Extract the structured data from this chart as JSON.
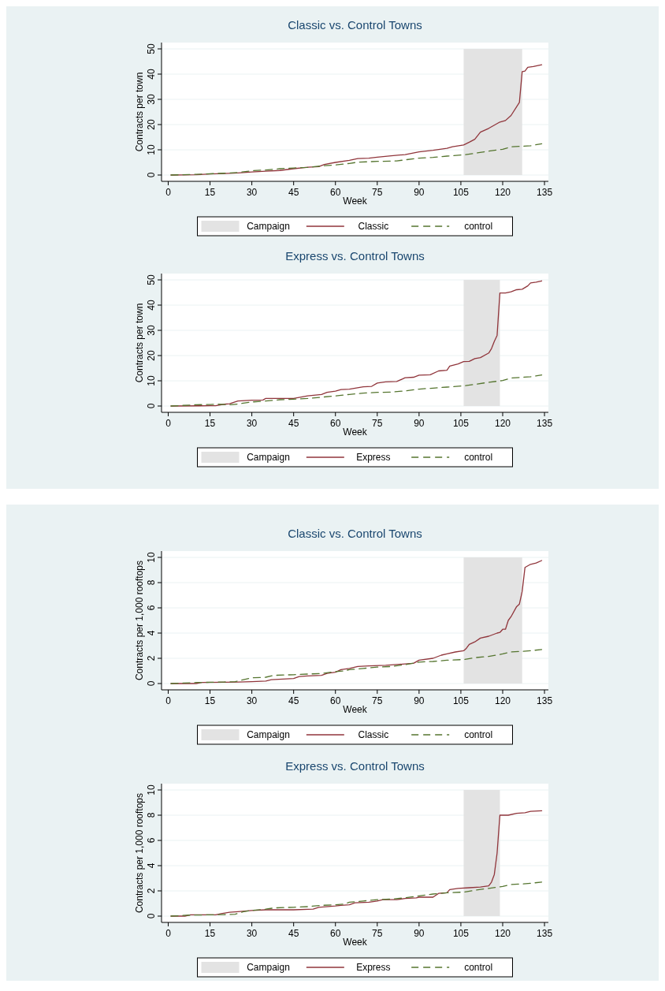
{
  "chart_data": [
    {
      "type": "line",
      "title": "Classic vs. Control Towns",
      "xlabel": "Week",
      "ylabel": "Contracts per town",
      "xlim": [
        -2.4,
        136.4
      ],
      "xticks": [
        0,
        15,
        30,
        45,
        60,
        75,
        90,
        105,
        120,
        135
      ],
      "ylim": [
        -2.5,
        52.5
      ],
      "yticks": [
        0,
        10,
        20,
        30,
        40,
        50
      ],
      "grid": "y",
      "legend": "bottom",
      "bands": [
        {
          "axis": "x",
          "from": 106,
          "to": 127,
          "label": "Campaign",
          "color": "#e3e3e3"
        }
      ],
      "series": [
        {
          "name": "Classic",
          "color": "#90353b",
          "line_style": "solid",
          "x": [
            1,
            10,
            15,
            20,
            25,
            30,
            35,
            40,
            45,
            50,
            54,
            56,
            60,
            65,
            68,
            72,
            75,
            80,
            85,
            90,
            95,
            100,
            102,
            106,
            108,
            110,
            112,
            115,
            119,
            121,
            123,
            126,
            127,
            128,
            129,
            131,
            134
          ],
          "values": [
            0,
            0.1,
            0.4,
            0.6,
            0.8,
            1.2,
            1.5,
            1.8,
            2.5,
            3.1,
            3.3,
            4.2,
            5,
            5.8,
            6.5,
            6.7,
            7.1,
            7.6,
            8.1,
            9.2,
            9.8,
            10.6,
            11.2,
            11.9,
            13,
            14.2,
            17,
            18.5,
            21,
            21.6,
            23.6,
            28.8,
            41,
            41.2,
            42.7,
            43,
            43.7
          ]
        },
        {
          "name": "control",
          "color": "#55752f",
          "line_style": "dashed",
          "x": [
            1,
            10,
            20,
            25,
            30,
            35,
            40,
            45,
            50,
            55,
            60,
            65,
            68,
            75,
            82,
            90,
            95,
            100,
            106,
            110,
            115,
            120,
            123,
            127,
            130,
            134
          ],
          "values": [
            0,
            0.3,
            0.7,
            1,
            1.7,
            2,
            2.5,
            2.8,
            3,
            3.6,
            4,
            4.6,
            5.1,
            5.4,
            5.6,
            6.7,
            7,
            7.5,
            8,
            8.6,
            9.5,
            10.2,
            11.2,
            11.4,
            11.6,
            12.4
          ]
        }
      ]
    },
    {
      "type": "line",
      "title": "Express vs. Control Towns",
      "xlabel": "Week",
      "ylabel": "Contracts per town",
      "xlim": [
        -2.4,
        136.4
      ],
      "xticks": [
        0,
        15,
        30,
        45,
        60,
        75,
        90,
        105,
        120,
        135
      ],
      "ylim": [
        -2.5,
        52.5
      ],
      "yticks": [
        0,
        10,
        20,
        30,
        40,
        50
      ],
      "grid": "y",
      "legend": "bottom",
      "bands": [
        {
          "axis": "x",
          "from": 106,
          "to": 119,
          "label": "Campaign",
          "color": "#e3e3e3"
        }
      ],
      "series": [
        {
          "name": "Express",
          "color": "#90353b",
          "line_style": "solid",
          "x": [
            1,
            15,
            17,
            20,
            22,
            25,
            30,
            34,
            35,
            45,
            50,
            55,
            57,
            60,
            62,
            65,
            70,
            73,
            75,
            78,
            82,
            85,
            88,
            90,
            94,
            97,
            100,
            101,
            104,
            106,
            108,
            110,
            112,
            115,
            116,
            117,
            118,
            119,
            121,
            123,
            125,
            127,
            129,
            130,
            132,
            134
          ],
          "values": [
            0,
            0.1,
            0.1,
            0.7,
            0.9,
            2,
            2.3,
            2.4,
            3,
            3,
            4,
            4.6,
            5.4,
            5.9,
            6.5,
            6.7,
            7.6,
            7.8,
            9.1,
            9.6,
            9.7,
            11.2,
            11.4,
            12.2,
            12.4,
            13.9,
            14.2,
            15.8,
            16.7,
            17.6,
            17.7,
            18.8,
            19.2,
            21,
            22.8,
            25.6,
            28,
            44.8,
            44.8,
            45.3,
            46.1,
            46.3,
            47.6,
            48.8,
            49.1,
            49.6
          ]
        },
        {
          "name": "control",
          "color": "#55752f",
          "line_style": "dashed",
          "x": [
            1,
            10,
            15,
            18,
            22,
            25,
            30,
            35,
            40,
            45,
            50,
            55,
            60,
            65,
            70,
            75,
            80,
            85,
            90,
            95,
            100,
            106,
            110,
            115,
            120,
            123,
            127,
            130,
            134
          ],
          "values": [
            0,
            0.5,
            0.6,
            0.7,
            0.5,
            0.8,
            1.6,
            2,
            2.5,
            2.7,
            3,
            3.5,
            4,
            4.6,
            5.1,
            5.4,
            5.5,
            6,
            6.7,
            7.1,
            7.5,
            8,
            8.6,
            9.4,
            10.1,
            11.1,
            11.4,
            11.6,
            12.3
          ]
        }
      ]
    },
    {
      "type": "line",
      "title": "Classic vs. Control Towns",
      "xlabel": "Week",
      "ylabel": "Contracts per 1,000 rooftops",
      "xlim": [
        -2.4,
        136.4
      ],
      "xticks": [
        0,
        15,
        30,
        45,
        60,
        75,
        90,
        105,
        120,
        135
      ],
      "ylim": [
        -0.5,
        10.5
      ],
      "yticks": [
        0,
        2,
        4,
        6,
        8,
        10
      ],
      "grid": "y",
      "legend": "bottom",
      "bands": [
        {
          "axis": "x",
          "from": 106,
          "to": 127,
          "label": "Campaign",
          "color": "#e3e3e3"
        }
      ],
      "series": [
        {
          "name": "Classic",
          "color": "#90353b",
          "line_style": "solid",
          "x": [
            1,
            10,
            12,
            20,
            25,
            30,
            35,
            37,
            45,
            47,
            50,
            55,
            57,
            60,
            62,
            65,
            68,
            72,
            78,
            85,
            88,
            90,
            95,
            98,
            100,
            103,
            106,
            107,
            108,
            110,
            112,
            115,
            118,
            119,
            120,
            121,
            122,
            123,
            125,
            126,
            127,
            128,
            130,
            132,
            134
          ],
          "values": [
            0,
            0,
            0.08,
            0.1,
            0.12,
            0.15,
            0.2,
            0.3,
            0.4,
            0.55,
            0.6,
            0.65,
            0.8,
            0.9,
            1.1,
            1.2,
            1.35,
            1.4,
            1.45,
            1.55,
            1.6,
            1.85,
            2,
            2.25,
            2.35,
            2.5,
            2.6,
            2.8,
            3.1,
            3.3,
            3.6,
            3.75,
            4,
            4.05,
            4.3,
            4.3,
            5,
            5.3,
            6.1,
            6.3,
            7.3,
            9.2,
            9.45,
            9.55,
            9.75
          ]
        },
        {
          "name": "control",
          "color": "#55752f",
          "line_style": "dashed",
          "x": [
            1,
            10,
            15,
            20,
            24,
            27,
            30,
            35,
            38,
            45,
            50,
            55,
            60,
            63,
            65,
            70,
            75,
            80,
            85,
            90,
            95,
            100,
            106,
            110,
            115,
            120,
            123,
            127,
            130,
            134
          ],
          "values": [
            0,
            0.08,
            0.1,
            0.12,
            0.15,
            0.3,
            0.45,
            0.5,
            0.65,
            0.7,
            0.75,
            0.8,
            0.95,
            1,
            1.1,
            1.2,
            1.3,
            1.35,
            1.5,
            1.7,
            1.75,
            1.85,
            1.9,
            2.05,
            2.15,
            2.35,
            2.5,
            2.55,
            2.6,
            2.7
          ]
        }
      ]
    },
    {
      "type": "line",
      "title": "Express vs. Control Towns",
      "xlabel": "Week",
      "ylabel": "Contracts per 1,000 rooftops",
      "xlim": [
        -2.4,
        136.4
      ],
      "xticks": [
        0,
        15,
        30,
        45,
        60,
        75,
        90,
        105,
        120,
        135
      ],
      "ylim": [
        -0.5,
        10.5
      ],
      "yticks": [
        0,
        2,
        4,
        6,
        8,
        10
      ],
      "grid": "y",
      "legend": "bottom",
      "bands": [
        {
          "axis": "x",
          "from": 106,
          "to": 119,
          "label": "Campaign",
          "color": "#e3e3e3"
        }
      ],
      "series": [
        {
          "name": "Express",
          "color": "#90353b",
          "line_style": "solid",
          "x": [
            1,
            6,
            8,
            15,
            17,
            19,
            22,
            25,
            30,
            35,
            45,
            52,
            54,
            60,
            62,
            65,
            67,
            72,
            75,
            77,
            82,
            85,
            89,
            90,
            95,
            97,
            100,
            101,
            104,
            108,
            112,
            115,
            116,
            117,
            118,
            119,
            122,
            125,
            128,
            130,
            134
          ],
          "values": [
            0,
            0,
            0.1,
            0.1,
            0.1,
            0.2,
            0.3,
            0.35,
            0.45,
            0.5,
            0.5,
            0.55,
            0.7,
            0.8,
            0.85,
            0.9,
            1.05,
            1.1,
            1.2,
            1.3,
            1.3,
            1.4,
            1.45,
            1.5,
            1.5,
            1.8,
            1.85,
            2.1,
            2.2,
            2.25,
            2.3,
            2.4,
            2.7,
            3.3,
            5,
            8,
            8,
            8.15,
            8.2,
            8.3,
            8.35
          ]
        },
        {
          "name": "control",
          "color": "#55752f",
          "line_style": "dashed",
          "x": [
            1,
            8,
            15,
            20,
            24,
            27,
            30,
            35,
            38,
            45,
            50,
            55,
            60,
            63,
            65,
            70,
            75,
            80,
            85,
            90,
            95,
            100,
            106,
            110,
            115,
            120,
            123,
            127,
            130,
            134
          ],
          "values": [
            0,
            0.08,
            0.1,
            0.12,
            0.15,
            0.35,
            0.45,
            0.55,
            0.65,
            0.7,
            0.75,
            0.85,
            0.9,
            0.95,
            1.1,
            1.2,
            1.3,
            1.35,
            1.45,
            1.6,
            1.75,
            1.85,
            1.9,
            2.05,
            2.2,
            2.35,
            2.5,
            2.55,
            2.6,
            2.7
          ]
        }
      ]
    }
  ]
}
